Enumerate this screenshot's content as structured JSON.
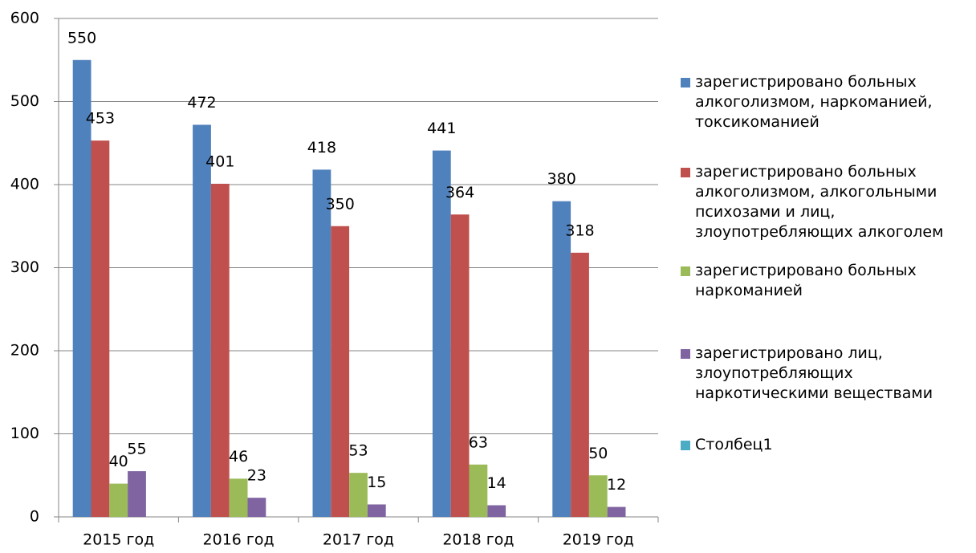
{
  "chart_data": {
    "type": "bar",
    "categories": [
      "2015 год",
      "2016 год",
      "2017 год",
      "2018 год",
      "2019 год"
    ],
    "series": [
      {
        "name": "зарегистрировано больных алкоголизмом, наркоманией, токсикоманией",
        "color": "#4f81bd",
        "values": [
          550,
          472,
          418,
          441,
          380
        ]
      },
      {
        "name": "зарегистрировано больных алкоголизмом, алкогольными психозами и лиц, злоупотребляющих алкоголем",
        "color": "#c0504d",
        "values": [
          453,
          401,
          350,
          364,
          318
        ]
      },
      {
        "name": "зарегистрировано больных наркоманией",
        "color": "#9bbb59",
        "values": [
          40,
          46,
          53,
          63,
          50
        ]
      },
      {
        "name": "зарегистрировано лиц, злоупотребляющих наркотическими веществами",
        "color": "#8064a2",
        "values": [
          55,
          23,
          15,
          14,
          12
        ]
      },
      {
        "name": "Столбец1",
        "color": "#4bacc6",
        "values": [
          null,
          null,
          null,
          null,
          null
        ]
      }
    ],
    "ylim": [
      0,
      600
    ],
    "yticks": [
      0,
      100,
      200,
      300,
      400,
      500,
      600
    ],
    "grid": true,
    "legend": "right"
  }
}
